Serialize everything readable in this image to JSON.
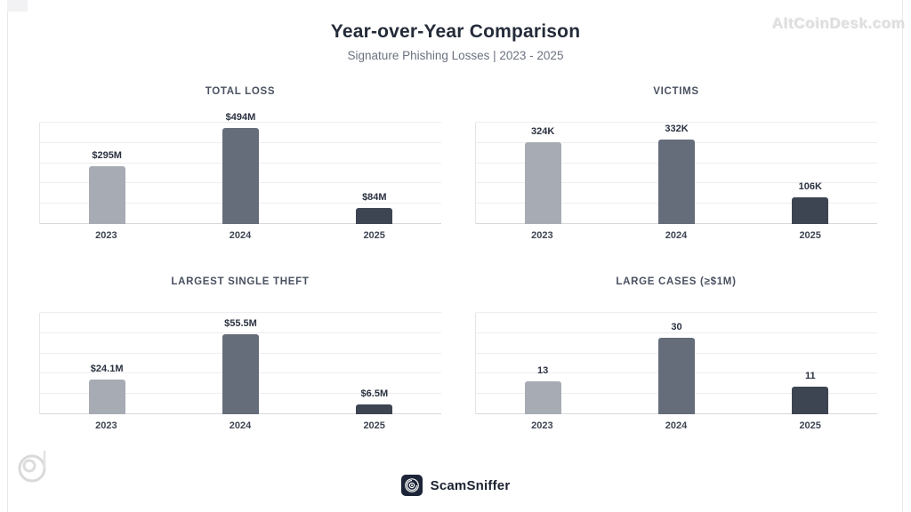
{
  "header": {
    "title": "Year-over-Year Comparison",
    "subtitle": "Signature Phishing Losses | 2023 - 2025"
  },
  "watermark": {
    "site": "AltCoinDesk.com"
  },
  "footer": {
    "brand": "ScamSniffer"
  },
  "colors": {
    "bar_2023": "#a7abb4",
    "bar_2024": "#656d7b",
    "bar_2025": "#3d4452",
    "title_text": "#242b39",
    "subtitle_text": "#6c7280",
    "chart_title_text": "#4a5160",
    "gridline": "#eeeef1",
    "baseline": "#d8d9dd",
    "watermark_text": "#dedede",
    "brand_icon_bg": "#1c2437"
  },
  "chart_data": [
    {
      "type": "bar",
      "title": "TOTAL LOSS",
      "categories": [
        "2023",
        "2024",
        "2025"
      ],
      "values": [
        295,
        494,
        84
      ],
      "value_labels": [
        "$295M",
        "$494M",
        "$84M"
      ],
      "bar_colors": [
        "#a7abb4",
        "#656d7b",
        "#3d4452"
      ],
      "ylim": [
        0,
        520
      ],
      "grid": true,
      "legend": false
    },
    {
      "type": "bar",
      "title": "VICTIMS",
      "categories": [
        "2023",
        "2024",
        "2025"
      ],
      "values": [
        324,
        332,
        106
      ],
      "value_labels": [
        "324K",
        "332K",
        "106K"
      ],
      "bar_colors": [
        "#a7abb4",
        "#656d7b",
        "#3d4452"
      ],
      "ylim": [
        0,
        400
      ],
      "grid": true,
      "legend": false
    },
    {
      "type": "bar",
      "title": "LARGEST SINGLE THEFT",
      "categories": [
        "2023",
        "2024",
        "2025"
      ],
      "values": [
        24.1,
        55.5,
        6.5
      ],
      "value_labels": [
        "$24.1M",
        "$55.5M",
        "$6.5M"
      ],
      "bar_colors": [
        "#a7abb4",
        "#656d7b",
        "#3d4452"
      ],
      "ylim": [
        0,
        70
      ],
      "grid": true,
      "legend": false
    },
    {
      "type": "bar",
      "title": "LARGE CASES (≥$1M)",
      "categories": [
        "2023",
        "2024",
        "2025"
      ],
      "values": [
        13,
        30,
        11
      ],
      "value_labels": [
        "13",
        "30",
        "11"
      ],
      "bar_colors": [
        "#a7abb4",
        "#656d7b",
        "#3d4452"
      ],
      "ylim": [
        0,
        40
      ],
      "grid": true,
      "legend": false
    }
  ]
}
